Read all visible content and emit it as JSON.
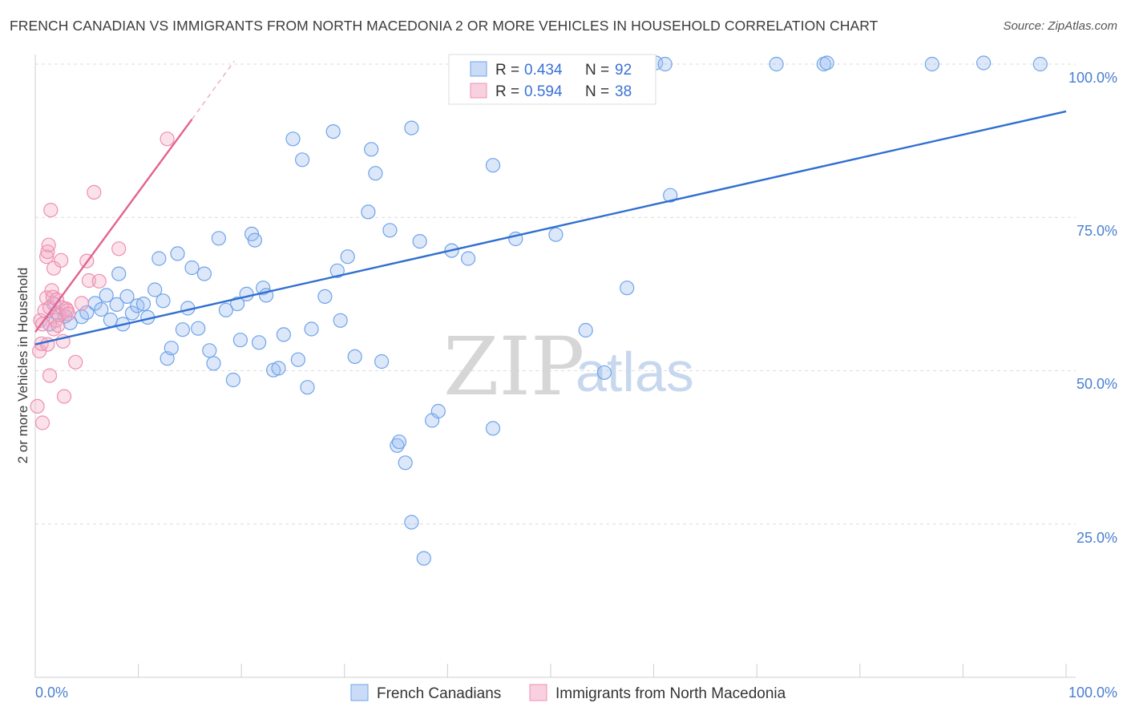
{
  "header": {
    "title": "FRENCH CANADIAN VS IMMIGRANTS FROM NORTH MACEDONIA 2 OR MORE VEHICLES IN HOUSEHOLD CORRELATION CHART",
    "source": "Source: ZipAtlas.com"
  },
  "watermark": {
    "zip": "ZIP",
    "atlas": "atlas"
  },
  "colors": {
    "blue": "#6fa3e8",
    "blue_fill": "rgba(156,190,240,0.35)",
    "blue_line": "#2f6fd0",
    "pink": "#ee8fb0",
    "pink_fill": "rgba(244,170,196,0.35)",
    "pink_line": "#e2628e",
    "tick_text": "#4a7fd0"
  },
  "legend": {
    "rows": [
      {
        "r_label": "R = ",
        "r_value": "0.434",
        "n_label": "N = ",
        "n_value": "92"
      },
      {
        "r_label": "R = ",
        "r_value": "0.594",
        "n_label": "N = ",
        "n_value": "38"
      }
    ]
  },
  "chart_data": {
    "type": "scatter",
    "title": "FRENCH CANADIAN VS IMMIGRANTS FROM NORTH MACEDONIA 2 OR MORE VEHICLES IN HOUSEHOLD CORRELATION CHART",
    "ylabel": "2 or more Vehicles in Household",
    "xlabel": "",
    "xlim": [
      0,
      100
    ],
    "ylim": [
      0,
      100
    ],
    "x_tick_labels": [
      "0.0%",
      "100.0%"
    ],
    "y_tick_labels": [
      "25.0%",
      "50.0%",
      "75.0%",
      "100.0%"
    ],
    "y_ticks": [
      25,
      50,
      75,
      100
    ],
    "grid": true,
    "legend_position": "top-center",
    "series": [
      {
        "name": "French Canadians",
        "trend": [
          [
            0,
            54.3
          ],
          [
            100,
            92.3
          ]
        ],
        "points": [
          [
            1.4,
            57.6
          ],
          [
            1.8,
            60.9
          ],
          [
            2.1,
            59.4
          ],
          [
            2.9,
            58.9
          ],
          [
            3.4,
            57.8
          ],
          [
            4.5,
            58.8
          ],
          [
            5.0,
            59.5
          ],
          [
            5.8,
            61.0
          ],
          [
            6.4,
            60.0
          ],
          [
            6.9,
            62.3
          ],
          [
            7.3,
            58.3
          ],
          [
            7.9,
            60.8
          ],
          [
            8.1,
            65.8
          ],
          [
            8.5,
            57.6
          ],
          [
            8.9,
            62.1
          ],
          [
            9.4,
            59.4
          ],
          [
            9.9,
            60.6
          ],
          [
            10.5,
            60.9
          ],
          [
            10.9,
            58.7
          ],
          [
            11.6,
            63.2
          ],
          [
            12.0,
            68.3
          ],
          [
            12.4,
            61.4
          ],
          [
            12.8,
            52.0
          ],
          [
            13.2,
            53.7
          ],
          [
            13.8,
            69.1
          ],
          [
            14.3,
            56.7
          ],
          [
            14.8,
            60.2
          ],
          [
            15.2,
            66.8
          ],
          [
            15.8,
            56.9
          ],
          [
            16.4,
            65.8
          ],
          [
            16.9,
            53.3
          ],
          [
            17.3,
            51.2
          ],
          [
            17.8,
            71.6
          ],
          [
            18.5,
            59.9
          ],
          [
            19.2,
            48.5
          ],
          [
            19.6,
            60.9
          ],
          [
            19.9,
            55.0
          ],
          [
            20.5,
            62.5
          ],
          [
            21.0,
            72.3
          ],
          [
            21.3,
            71.3
          ],
          [
            21.7,
            54.6
          ],
          [
            22.1,
            63.5
          ],
          [
            22.4,
            62.3
          ],
          [
            23.1,
            50.1
          ],
          [
            23.6,
            50.4
          ],
          [
            24.1,
            55.9
          ],
          [
            25.0,
            87.8
          ],
          [
            25.5,
            51.8
          ],
          [
            25.9,
            84.4
          ],
          [
            26.4,
            47.3
          ],
          [
            26.8,
            56.8
          ],
          [
            28.1,
            62.1
          ],
          [
            28.9,
            89.0
          ],
          [
            29.3,
            66.3
          ],
          [
            29.6,
            58.2
          ],
          [
            30.3,
            68.6
          ],
          [
            31.0,
            52.3
          ],
          [
            32.3,
            75.9
          ],
          [
            32.6,
            86.1
          ],
          [
            33.0,
            82.2
          ],
          [
            33.6,
            51.5
          ],
          [
            34.4,
            72.9
          ],
          [
            35.1,
            37.8
          ],
          [
            35.3,
            38.4
          ],
          [
            35.9,
            35.0
          ],
          [
            36.5,
            89.6
          ],
          [
            36.5,
            25.3
          ],
          [
            37.3,
            71.1
          ],
          [
            37.7,
            19.4
          ],
          [
            38.5,
            41.9
          ],
          [
            39.1,
            43.4
          ],
          [
            40.4,
            69.6
          ],
          [
            42.0,
            68.3
          ],
          [
            44.4,
            83.5
          ],
          [
            44.4,
            40.6
          ],
          [
            45.4,
            100.2
          ],
          [
            46.6,
            71.5
          ],
          [
            50.5,
            72.2
          ],
          [
            53.4,
            56.6
          ],
          [
            55.2,
            49.7
          ],
          [
            57.4,
            63.5
          ],
          [
            58.7,
            100.2
          ],
          [
            59.0,
            100.0
          ],
          [
            60.2,
            100.2
          ],
          [
            61.1,
            100.0
          ],
          [
            61.6,
            78.6
          ],
          [
            71.9,
            100.0
          ],
          [
            76.5,
            100.0
          ],
          [
            76.8,
            100.2
          ],
          [
            87.0,
            100.0
          ],
          [
            92.0,
            100.2
          ],
          [
            97.5,
            100.0
          ]
        ]
      },
      {
        "name": "Immigrants from North Macedonia",
        "trend": [
          [
            0,
            56.3
          ],
          [
            15.2,
            91.0
          ]
        ],
        "trend_dashed": [
          [
            15.2,
            91.0
          ],
          [
            19.3,
            100.5
          ]
        ],
        "points": [
          [
            0.2,
            44.2
          ],
          [
            0.4,
            53.2
          ],
          [
            0.5,
            58.2
          ],
          [
            0.6,
            54.4
          ],
          [
            0.7,
            57.6
          ],
          [
            0.7,
            41.5
          ],
          [
            0.9,
            59.8
          ],
          [
            1.1,
            61.9
          ],
          [
            1.1,
            68.6
          ],
          [
            1.2,
            54.3
          ],
          [
            1.2,
            69.4
          ],
          [
            1.3,
            70.5
          ],
          [
            1.4,
            60.3
          ],
          [
            1.4,
            49.2
          ],
          [
            1.5,
            76.2
          ],
          [
            1.6,
            63.1
          ],
          [
            1.7,
            62.0
          ],
          [
            1.8,
            56.8
          ],
          [
            1.8,
            66.7
          ],
          [
            2.0,
            58.2
          ],
          [
            2.1,
            61.6
          ],
          [
            2.2,
            57.4
          ],
          [
            2.3,
            59.1
          ],
          [
            2.5,
            68.0
          ],
          [
            2.6,
            60.3
          ],
          [
            2.7,
            54.8
          ],
          [
            2.8,
            45.8
          ],
          [
            3.0,
            60.1
          ],
          [
            3.1,
            59.8
          ],
          [
            3.2,
            59.3
          ],
          [
            3.9,
            51.4
          ],
          [
            4.5,
            61.0
          ],
          [
            5.0,
            67.9
          ],
          [
            5.2,
            64.7
          ],
          [
            5.7,
            79.1
          ],
          [
            6.2,
            64.6
          ],
          [
            8.1,
            69.9
          ],
          [
            12.8,
            87.8
          ]
        ]
      }
    ]
  }
}
